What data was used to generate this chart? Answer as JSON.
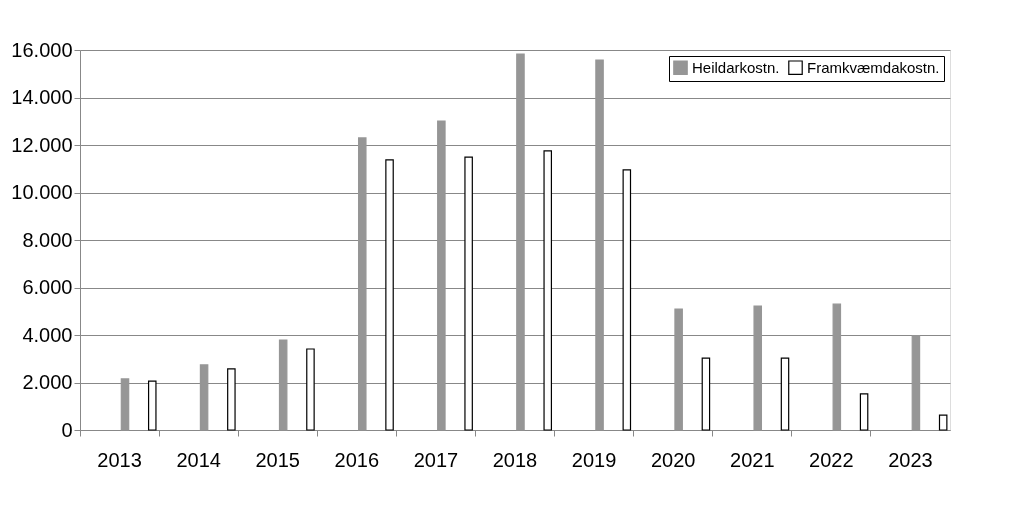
{
  "chart_data": {
    "type": "bar",
    "categories": [
      "2013",
      "2014",
      "2015",
      "2016",
      "2017",
      "2018",
      "2019",
      "2020",
      "2021",
      "2022",
      "2023"
    ],
    "series": [
      {
        "name": "Heildarkostn.",
        "color": "#969696",
        "values": [
          2150,
          2740,
          3790,
          12300,
          13010,
          15830,
          15580,
          5090,
          5220,
          5300,
          3960
        ]
      },
      {
        "name": "Framkvæmdakostn.",
        "color": "#ffffff",
        "values": [
          2060,
          2570,
          3410,
          11370,
          11490,
          11750,
          10950,
          3030,
          3030,
          1520,
          630
        ]
      }
    ],
    "ylim": [
      0,
      16000
    ],
    "yticks": [
      {
        "value": 0,
        "label": "0"
      },
      {
        "value": 2000,
        "label": "2.000"
      },
      {
        "value": 4000,
        "label": "4.000"
      },
      {
        "value": 6000,
        "label": "6.000"
      },
      {
        "value": 8000,
        "label": "8.000"
      },
      {
        "value": 10000,
        "label": "10.000"
      },
      {
        "value": 12000,
        "label": "12.000"
      },
      {
        "value": 14000,
        "label": "14.000"
      },
      {
        "value": 16000,
        "label": "16.000"
      }
    ],
    "grid": "y",
    "legend": "top right"
  }
}
